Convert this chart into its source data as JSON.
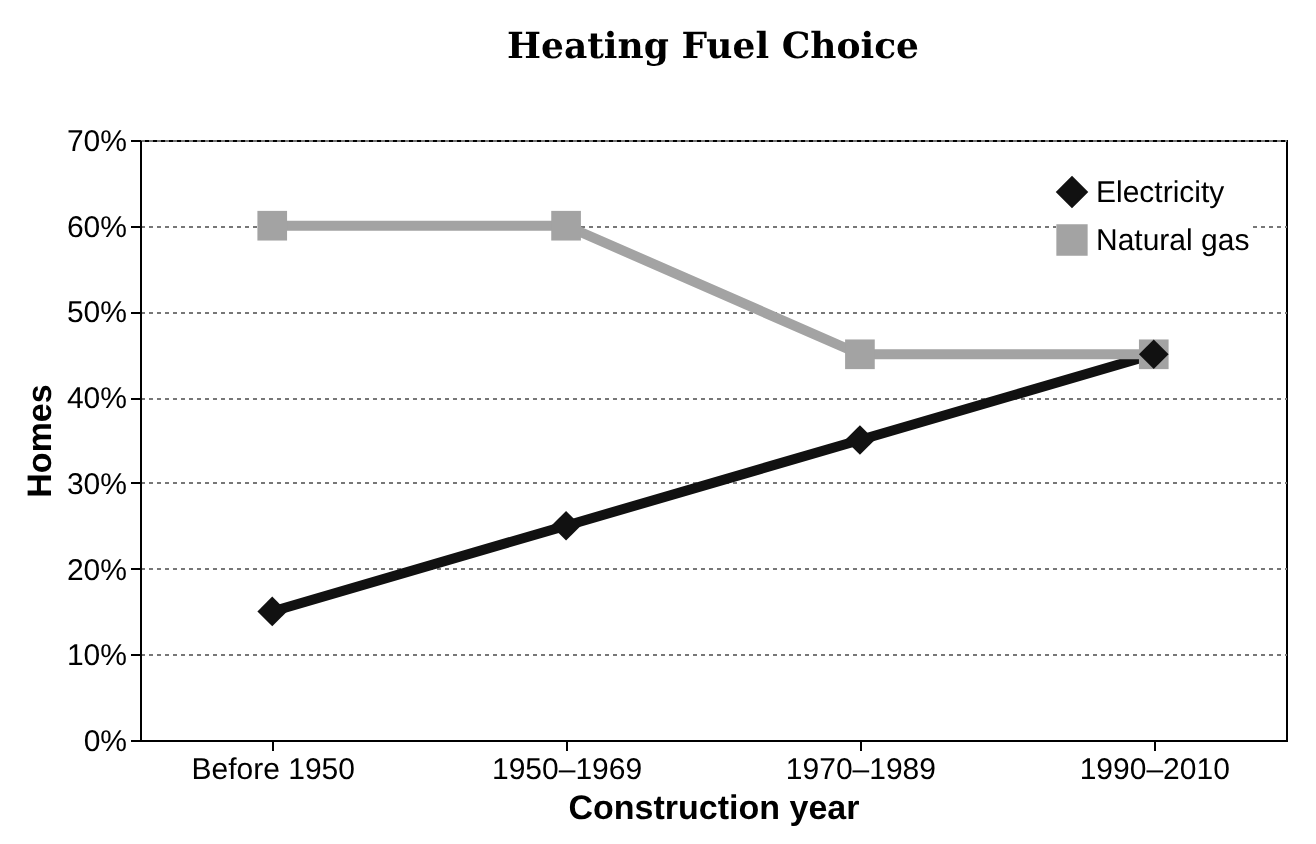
{
  "chart_data": {
    "type": "line",
    "title": "Heating Fuel Choice",
    "xlabel": "Construction year",
    "ylabel": "Homes",
    "categories": [
      "Before 1950",
      "1950–1969",
      "1970–1989",
      "1990–2010"
    ],
    "series": [
      {
        "name": "Electricity",
        "color": "#111111",
        "values": [
          15,
          25,
          35,
          45
        ],
        "marker": "diamond"
      },
      {
        "name": "Natural gas",
        "color": "#a3a3a3",
        "values": [
          60,
          60,
          45,
          45
        ],
        "marker": "square"
      }
    ],
    "ylim": [
      0,
      70
    ],
    "yticks": [
      {
        "value": 0,
        "label": "0%"
      },
      {
        "value": 10,
        "label": "10%"
      },
      {
        "value": 20,
        "label": "20%"
      },
      {
        "value": 30,
        "label": "30%"
      },
      {
        "value": 40,
        "label": "40%"
      },
      {
        "value": 50,
        "label": "50%"
      },
      {
        "value": 60,
        "label": "60%"
      },
      {
        "value": 70,
        "label": "70%"
      }
    ],
    "grid": "y",
    "legend": "top right",
    "line_style": "solid"
  }
}
